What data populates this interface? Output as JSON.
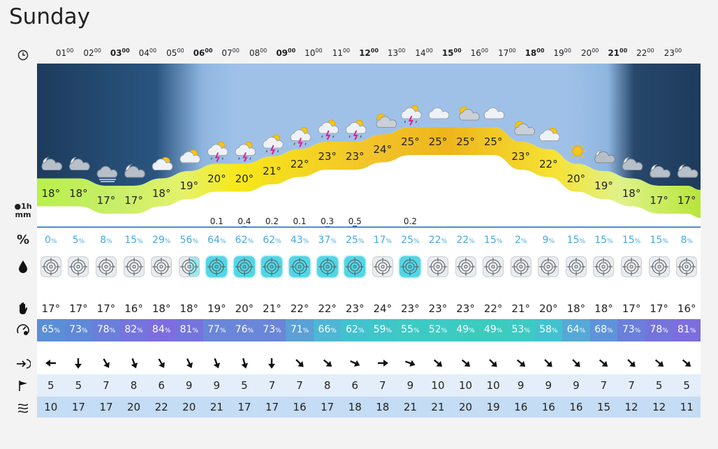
{
  "title": "Sunday",
  "hours": [
    "01",
    "02",
    "03",
    "04",
    "05",
    "06",
    "07",
    "08",
    "09",
    "10",
    "11",
    "12",
    "13",
    "14",
    "15",
    "16",
    "17",
    "18",
    "19",
    "20",
    "21",
    "22",
    "23"
  ],
  "hour_suffix": "00",
  "bold_hours": [
    "03",
    "06",
    "09",
    "12",
    "15",
    "18",
    "21"
  ],
  "temperatures": [
    "18°",
    "18°",
    "17°",
    "17°",
    "18°",
    "19°",
    "20°",
    "20°",
    "21°",
    "22°",
    "23°",
    "23°",
    "24°",
    "25°",
    "25°",
    "25°",
    "25°",
    "23°",
    "22°",
    "20°",
    "19°",
    "18°",
    "17°",
    "17°"
  ],
  "temp_values": [
    18,
    18,
    17,
    17,
    18,
    19,
    20,
    20,
    21,
    22,
    23,
    23,
    24,
    25,
    25,
    25,
    25,
    23,
    22,
    20,
    19,
    18,
    17,
    17
  ],
  "weather_icons": [
    "moon-cloud-icon",
    "moon-cloud-icon",
    "cloud-fog-icon",
    "moon-cloud-icon",
    "sun-cloud-icon",
    "sun-cloud-icon",
    "thunder-rain-icon",
    "thunder-rain-icon",
    "thunder-rain-icon",
    "thunder-rain-icon",
    "thunder-rain-icon",
    "thunder-rain-icon",
    "cloud-sun-icon",
    "thunder-rain-icon",
    "cloud-icon",
    "cloud-sun-icon",
    "cloud-icon",
    "cloud-sun-icon",
    "sun-cloud-icon",
    "sun-icon",
    "moon-cloud-icon",
    "moon-cloud-icon",
    "moon-cloud-icon",
    "moon-cloud-icon"
  ],
  "precip_amounts": [
    "",
    "",
    "",
    "",
    "",
    "",
    "0.1",
    "0.4",
    "0.2",
    "0.1",
    "0.3",
    "0.5",
    "",
    "0.2",
    "",
    "",
    "",
    "",
    "",
    "",
    "",
    "",
    "",
    ""
  ],
  "precip_values": [
    0,
    0,
    0,
    0,
    0,
    0,
    0.1,
    0.4,
    0.2,
    0.1,
    0.3,
    0.5,
    0,
    0.2,
    0,
    0,
    0,
    0,
    0,
    0,
    0,
    0,
    0,
    0
  ],
  "rain_probability": [
    "0",
    "5",
    "8",
    "15",
    "29",
    "56",
    "64",
    "62",
    "62",
    "43",
    "37",
    "25",
    "17",
    "25",
    "22",
    "22",
    "15",
    "2",
    "9",
    "15",
    "15",
    "15",
    "15",
    "8"
  ],
  "rain_probability_values": [
    0,
    5,
    8,
    15,
    29,
    56,
    64,
    62,
    62,
    43,
    37,
    25,
    17,
    25,
    22,
    22,
    15,
    2,
    9,
    15,
    15,
    15,
    15,
    8
  ],
  "percent_unit": "%",
  "feels_like": [
    "17°",
    "17°",
    "17°",
    "16°",
    "18°",
    "18°",
    "19°",
    "20°",
    "21°",
    "22°",
    "22°",
    "23°",
    "24°",
    "23°",
    "23°",
    "23°",
    "22°",
    "21°",
    "20°",
    "18°",
    "18°",
    "17°",
    "17°",
    "16°"
  ],
  "humidity": [
    "65",
    "73",
    "78",
    "82",
    "84",
    "81",
    "77",
    "76",
    "73",
    "71",
    "66",
    "62",
    "59",
    "55",
    "52",
    "49",
    "49",
    "53",
    "58",
    "64",
    "68",
    "73",
    "78",
    "81"
  ],
  "humidity_colors": [
    "#5a8ed6",
    "#5f88d8",
    "#6a7fda",
    "#7574dc",
    "#7c6ede",
    "#7574dc",
    "#6a86d8",
    "#6a86d8",
    "#6a86d8",
    "#5ba0d6",
    "#4fb6d4",
    "#42c2cf",
    "#3fc6c9",
    "#3ecac4",
    "#3ecac4",
    "#3bcbbf",
    "#3bcbbf",
    "#3ecac4",
    "#42c2cf",
    "#56a9d6",
    "#5f93d8",
    "#6a7fda",
    "#7574dc",
    "#7c6ede"
  ],
  "wind_direction_degrees": [
    270,
    180,
    150,
    160,
    150,
    155,
    160,
    165,
    180,
    135,
    130,
    115,
    90,
    110,
    130,
    130,
    135,
    130,
    135,
    135,
    130,
    135,
    130,
    130
  ],
  "wind_speed": [
    "5",
    "5",
    "7",
    "8",
    "6",
    "9",
    "9",
    "5",
    "7",
    "7",
    "8",
    "6",
    "7",
    "9",
    "10",
    "10",
    "10",
    "9",
    "9",
    "9",
    "7",
    "7",
    "5",
    "5"
  ],
  "wind_gust": [
    "10",
    "17",
    "17",
    "20",
    "22",
    "20",
    "21",
    "17",
    "17",
    "16",
    "17",
    "18",
    "18",
    "21",
    "21",
    "20",
    "19",
    "16",
    "16",
    "16",
    "15",
    "12",
    "12",
    "11"
  ],
  "precip_unit": "mm",
  "precip_label": "1h"
}
